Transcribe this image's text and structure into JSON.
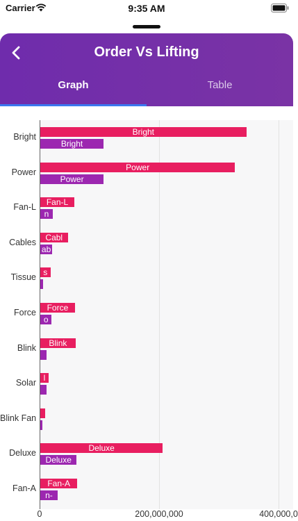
{
  "status_bar": {
    "carrier": "Carrier",
    "time": "9:35 AM"
  },
  "appbar": {
    "title": "Order Vs Lifting",
    "back_icon": "chevron-left-icon"
  },
  "tabs": [
    {
      "label": "Graph",
      "selected": true
    },
    {
      "label": "Table",
      "selected": false
    }
  ],
  "colors": {
    "order": "#e81e60",
    "lifting": "#9c27b0",
    "accent": "#3b78f0",
    "appbar": "#7030a8"
  },
  "chart_data": {
    "type": "bar",
    "orientation": "horizontal",
    "categories": [
      "Bright",
      "Power",
      "Fan-L",
      "Cables",
      "Tissue",
      "Force",
      "Blink",
      "Solar",
      "Blink Fan",
      "Deluxe",
      "Fan-A"
    ],
    "series": [
      {
        "values": [
          345000000,
          326000000,
          57000000,
          46000000,
          17000000,
          58000000,
          59000000,
          14000000,
          8000000,
          205000000,
          62000000
        ],
        "bar_labels": [
          "Bright",
          "Power",
          "Fan-L",
          "Cabl",
          "s",
          "Force",
          "Blink",
          "l",
          "",
          "Deluxe",
          "Fan-A"
        ]
      },
      {
        "values": [
          106000000,
          106000000,
          21000000,
          20000000,
          5000000,
          19000000,
          11000000,
          10000000,
          4000000,
          61000000,
          29000000
        ],
        "bar_labels": [
          "Bright",
          "Power",
          "n",
          "ab",
          "",
          "o",
          "",
          "",
          "",
          "Deluxe",
          "n-"
        ]
      }
    ],
    "xlim": [
      0,
      400000000
    ],
    "x_ticks": [
      "0",
      "200,000,000",
      "400,000,0"
    ],
    "grid": "vertical"
  }
}
